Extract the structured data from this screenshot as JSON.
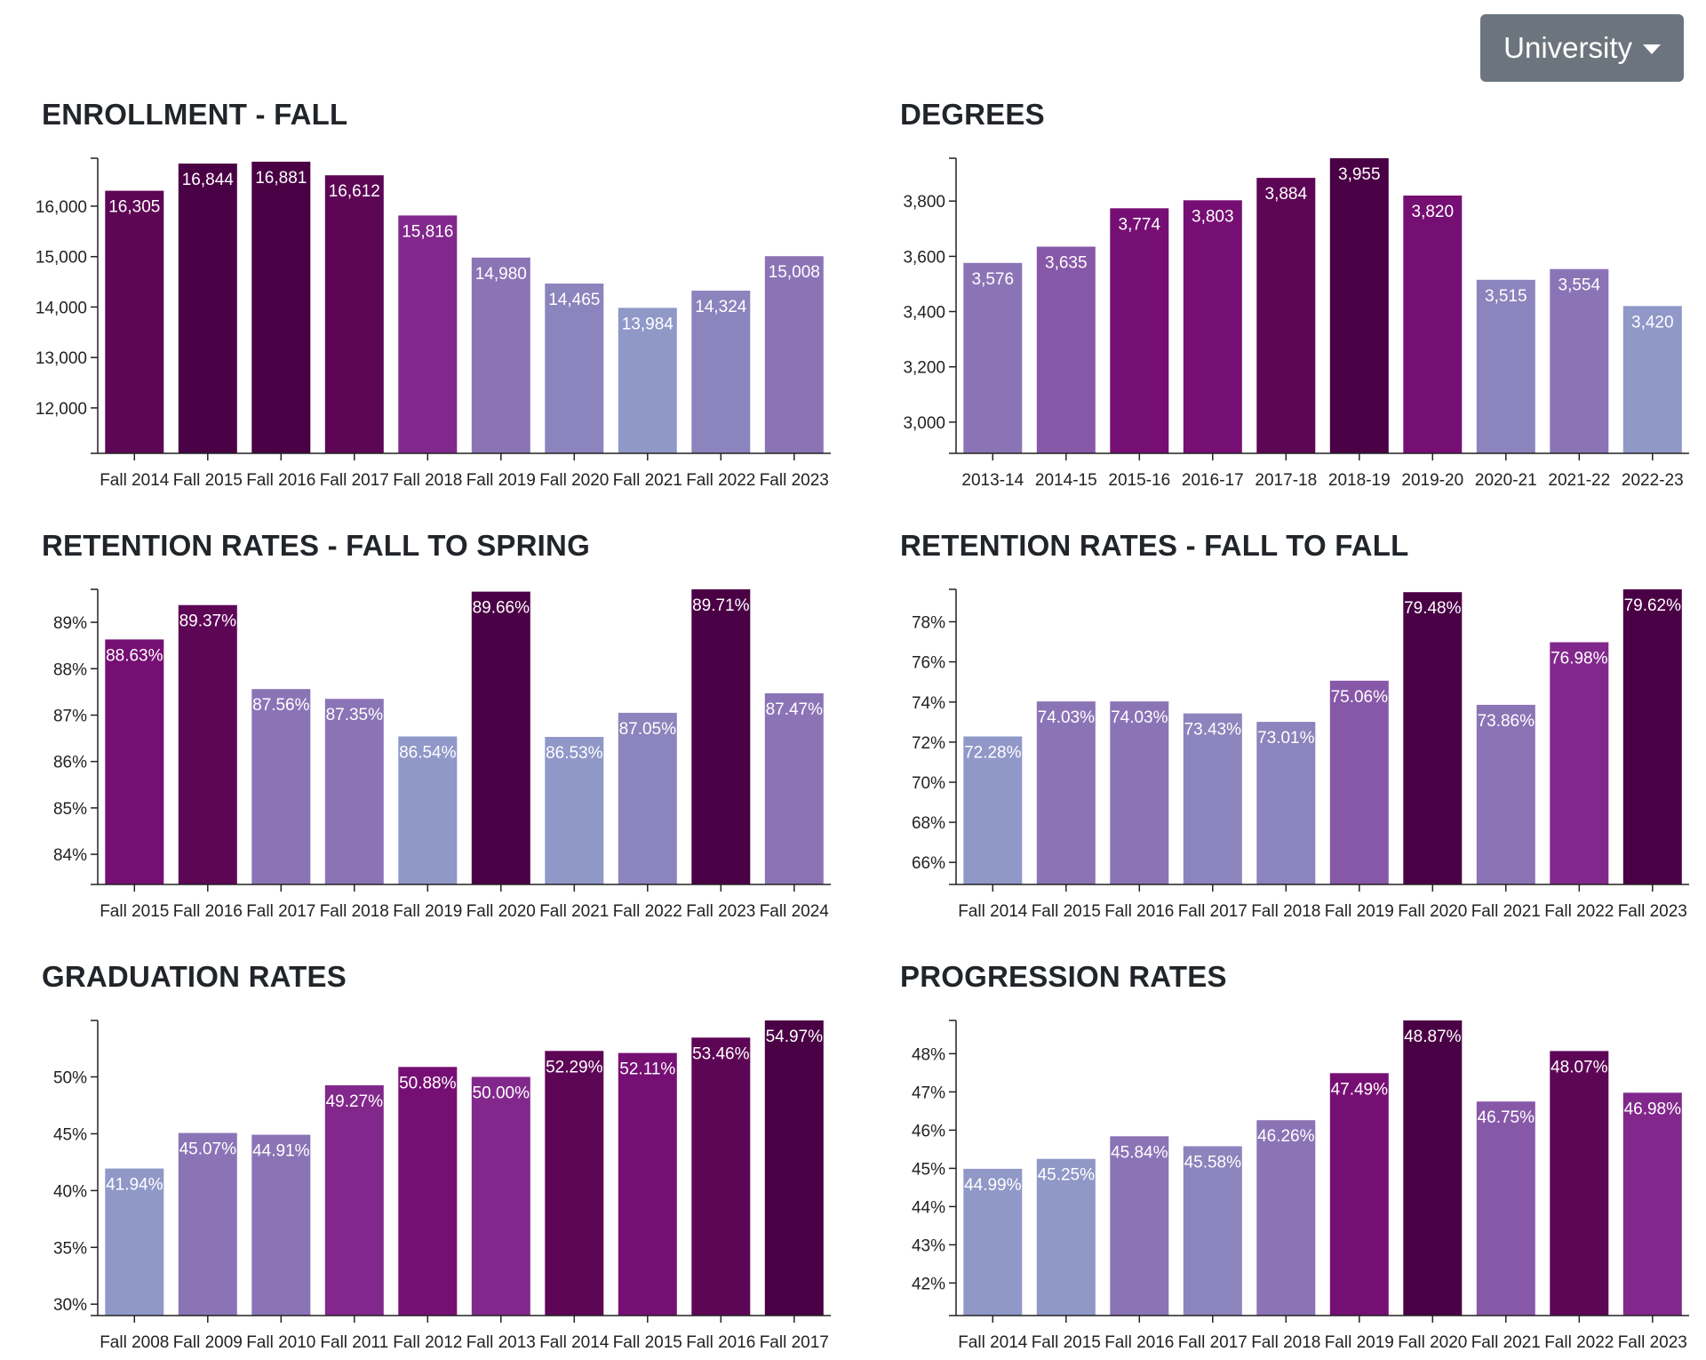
{
  "dropdown": {
    "label": "University",
    "icon": "caret-down-icon"
  },
  "palette": [
    "#9098c8",
    "#8c84bc",
    "#8b74b6",
    "#8758a8",
    "#82288c",
    "#760f74",
    "#5e0656",
    "#4a0045"
  ],
  "chart_data": [
    {
      "id": "enrollment",
      "type": "bar",
      "title": "ENROLLMENT - FALL",
      "categories": [
        "Fall 2014",
        "Fall 2015",
        "Fall 2016",
        "Fall 2017",
        "Fall 2018",
        "Fall 2019",
        "Fall 2020",
        "Fall 2021",
        "Fall 2022",
        "Fall 2023"
      ],
      "values": [
        16305,
        16844,
        16881,
        16612,
        15816,
        14980,
        14465,
        13984,
        14324,
        15008
      ],
      "labels": [
        "16,305",
        "16,844",
        "16,881",
        "16,612",
        "15,816",
        "14,980",
        "14,465",
        "13,984",
        "14,324",
        "15,008"
      ],
      "yticks": [
        12000,
        13000,
        14000,
        15000,
        16000
      ],
      "ytick_labels": [
        "12,000",
        "13,000",
        "14,000",
        "15,000",
        "16,000"
      ],
      "ylim": [
        11100,
        16950
      ]
    },
    {
      "id": "degrees",
      "type": "bar",
      "title": "DEGREES",
      "categories": [
        "2013-14",
        "2014-15",
        "2015-16",
        "2016-17",
        "2017-18",
        "2018-19",
        "2019-20",
        "2020-21",
        "2021-22",
        "2022-23"
      ],
      "values": [
        3576,
        3635,
        3774,
        3803,
        3884,
        3955,
        3820,
        3515,
        3554,
        3420
      ],
      "labels": [
        "3,576",
        "3,635",
        "3,774",
        "3,803",
        "3,884",
        "3,955",
        "3,820",
        "3,515",
        "3,554",
        "3,420"
      ],
      "yticks": [
        3000,
        3200,
        3400,
        3600,
        3800
      ],
      "ytick_labels": [
        "3,000",
        "3,200",
        "3,400",
        "3,600",
        "3,800"
      ],
      "ylim": [
        2887,
        3955
      ]
    },
    {
      "id": "retention-fall-spring",
      "type": "bar",
      "title": "RETENTION RATES - FALL TO SPRING",
      "categories": [
        "Fall 2015",
        "Fall 2016",
        "Fall 2017",
        "Fall 2018",
        "Fall 2019",
        "Fall 2020",
        "Fall 2021",
        "Fall 2022",
        "Fall 2023",
        "Fall 2024"
      ],
      "values": [
        88.63,
        89.37,
        87.56,
        87.35,
        86.54,
        89.66,
        86.53,
        87.05,
        89.71,
        87.47
      ],
      "labels": [
        "88.63%",
        "89.37%",
        "87.56%",
        "87.35%",
        "86.54%",
        "89.66%",
        "86.53%",
        "87.05%",
        "89.71%",
        "87.47%"
      ],
      "yticks": [
        84,
        85,
        86,
        87,
        88,
        89
      ],
      "ytick_labels": [
        "84%",
        "85%",
        "86%",
        "87%",
        "88%",
        "89%"
      ],
      "ylim": [
        83.35,
        89.71
      ]
    },
    {
      "id": "retention-fall-fall",
      "type": "bar",
      "title": "RETENTION RATES - FALL TO FALL",
      "categories": [
        "Fall 2014",
        "Fall 2015",
        "Fall 2016",
        "Fall 2017",
        "Fall 2018",
        "Fall 2019",
        "Fall 2020",
        "Fall 2021",
        "Fall 2022",
        "Fall 2023"
      ],
      "values": [
        72.28,
        74.03,
        74.03,
        73.43,
        73.01,
        75.06,
        79.48,
        73.86,
        76.98,
        79.62
      ],
      "labels": [
        "72.28%",
        "74.03%",
        "74.03%",
        "73.43%",
        "73.01%",
        "75.06%",
        "79.48%",
        "73.86%",
        "76.98%",
        "79.62%"
      ],
      "yticks": [
        66,
        68,
        70,
        72,
        74,
        76,
        78
      ],
      "ytick_labels": [
        "66%",
        "68%",
        "70%",
        "72%",
        "74%",
        "76%",
        "78%"
      ],
      "ylim": [
        64.9,
        79.62
      ]
    },
    {
      "id": "graduation",
      "type": "bar",
      "title": "GRADUATION RATES",
      "categories": [
        "Fall 2008",
        "Fall 2009",
        "Fall 2010",
        "Fall 2011",
        "Fall 2012",
        "Fall 2013",
        "Fall 2014",
        "Fall 2015",
        "Fall 2016",
        "Fall 2017"
      ],
      "values": [
        41.94,
        45.07,
        44.91,
        49.27,
        50.88,
        50.0,
        52.29,
        52.11,
        53.46,
        54.97
      ],
      "labels": [
        "41.94%",
        "45.07%",
        "44.91%",
        "49.27%",
        "50.88%",
        "50.00%",
        "52.29%",
        "52.11%",
        "53.46%",
        "54.97%"
      ],
      "yticks": [
        30,
        35,
        40,
        45,
        50
      ],
      "ytick_labels": [
        "30%",
        "35%",
        "40%",
        "45%",
        "50%"
      ],
      "ylim": [
        29.0,
        54.97
      ]
    },
    {
      "id": "progression",
      "type": "bar",
      "title": "PROGRESSION RATES",
      "categories": [
        "Fall 2014",
        "Fall 2015",
        "Fall 2016",
        "Fall 2017",
        "Fall 2018",
        "Fall 2019",
        "Fall 2020",
        "Fall 2021",
        "Fall 2022",
        "Fall 2023"
      ],
      "values": [
        44.99,
        45.25,
        45.84,
        45.58,
        46.26,
        47.49,
        48.87,
        46.75,
        48.07,
        46.98
      ],
      "labels": [
        "44.99%",
        "45.25%",
        "45.84%",
        "45.58%",
        "46.26%",
        "47.49%",
        "48.87%",
        "46.75%",
        "48.07%",
        "46.98%"
      ],
      "yticks": [
        42,
        43,
        44,
        45,
        46,
        47,
        48
      ],
      "ytick_labels": [
        "42%",
        "43%",
        "44%",
        "45%",
        "46%",
        "47%",
        "48%"
      ],
      "ylim": [
        41.15,
        48.87
      ]
    }
  ]
}
